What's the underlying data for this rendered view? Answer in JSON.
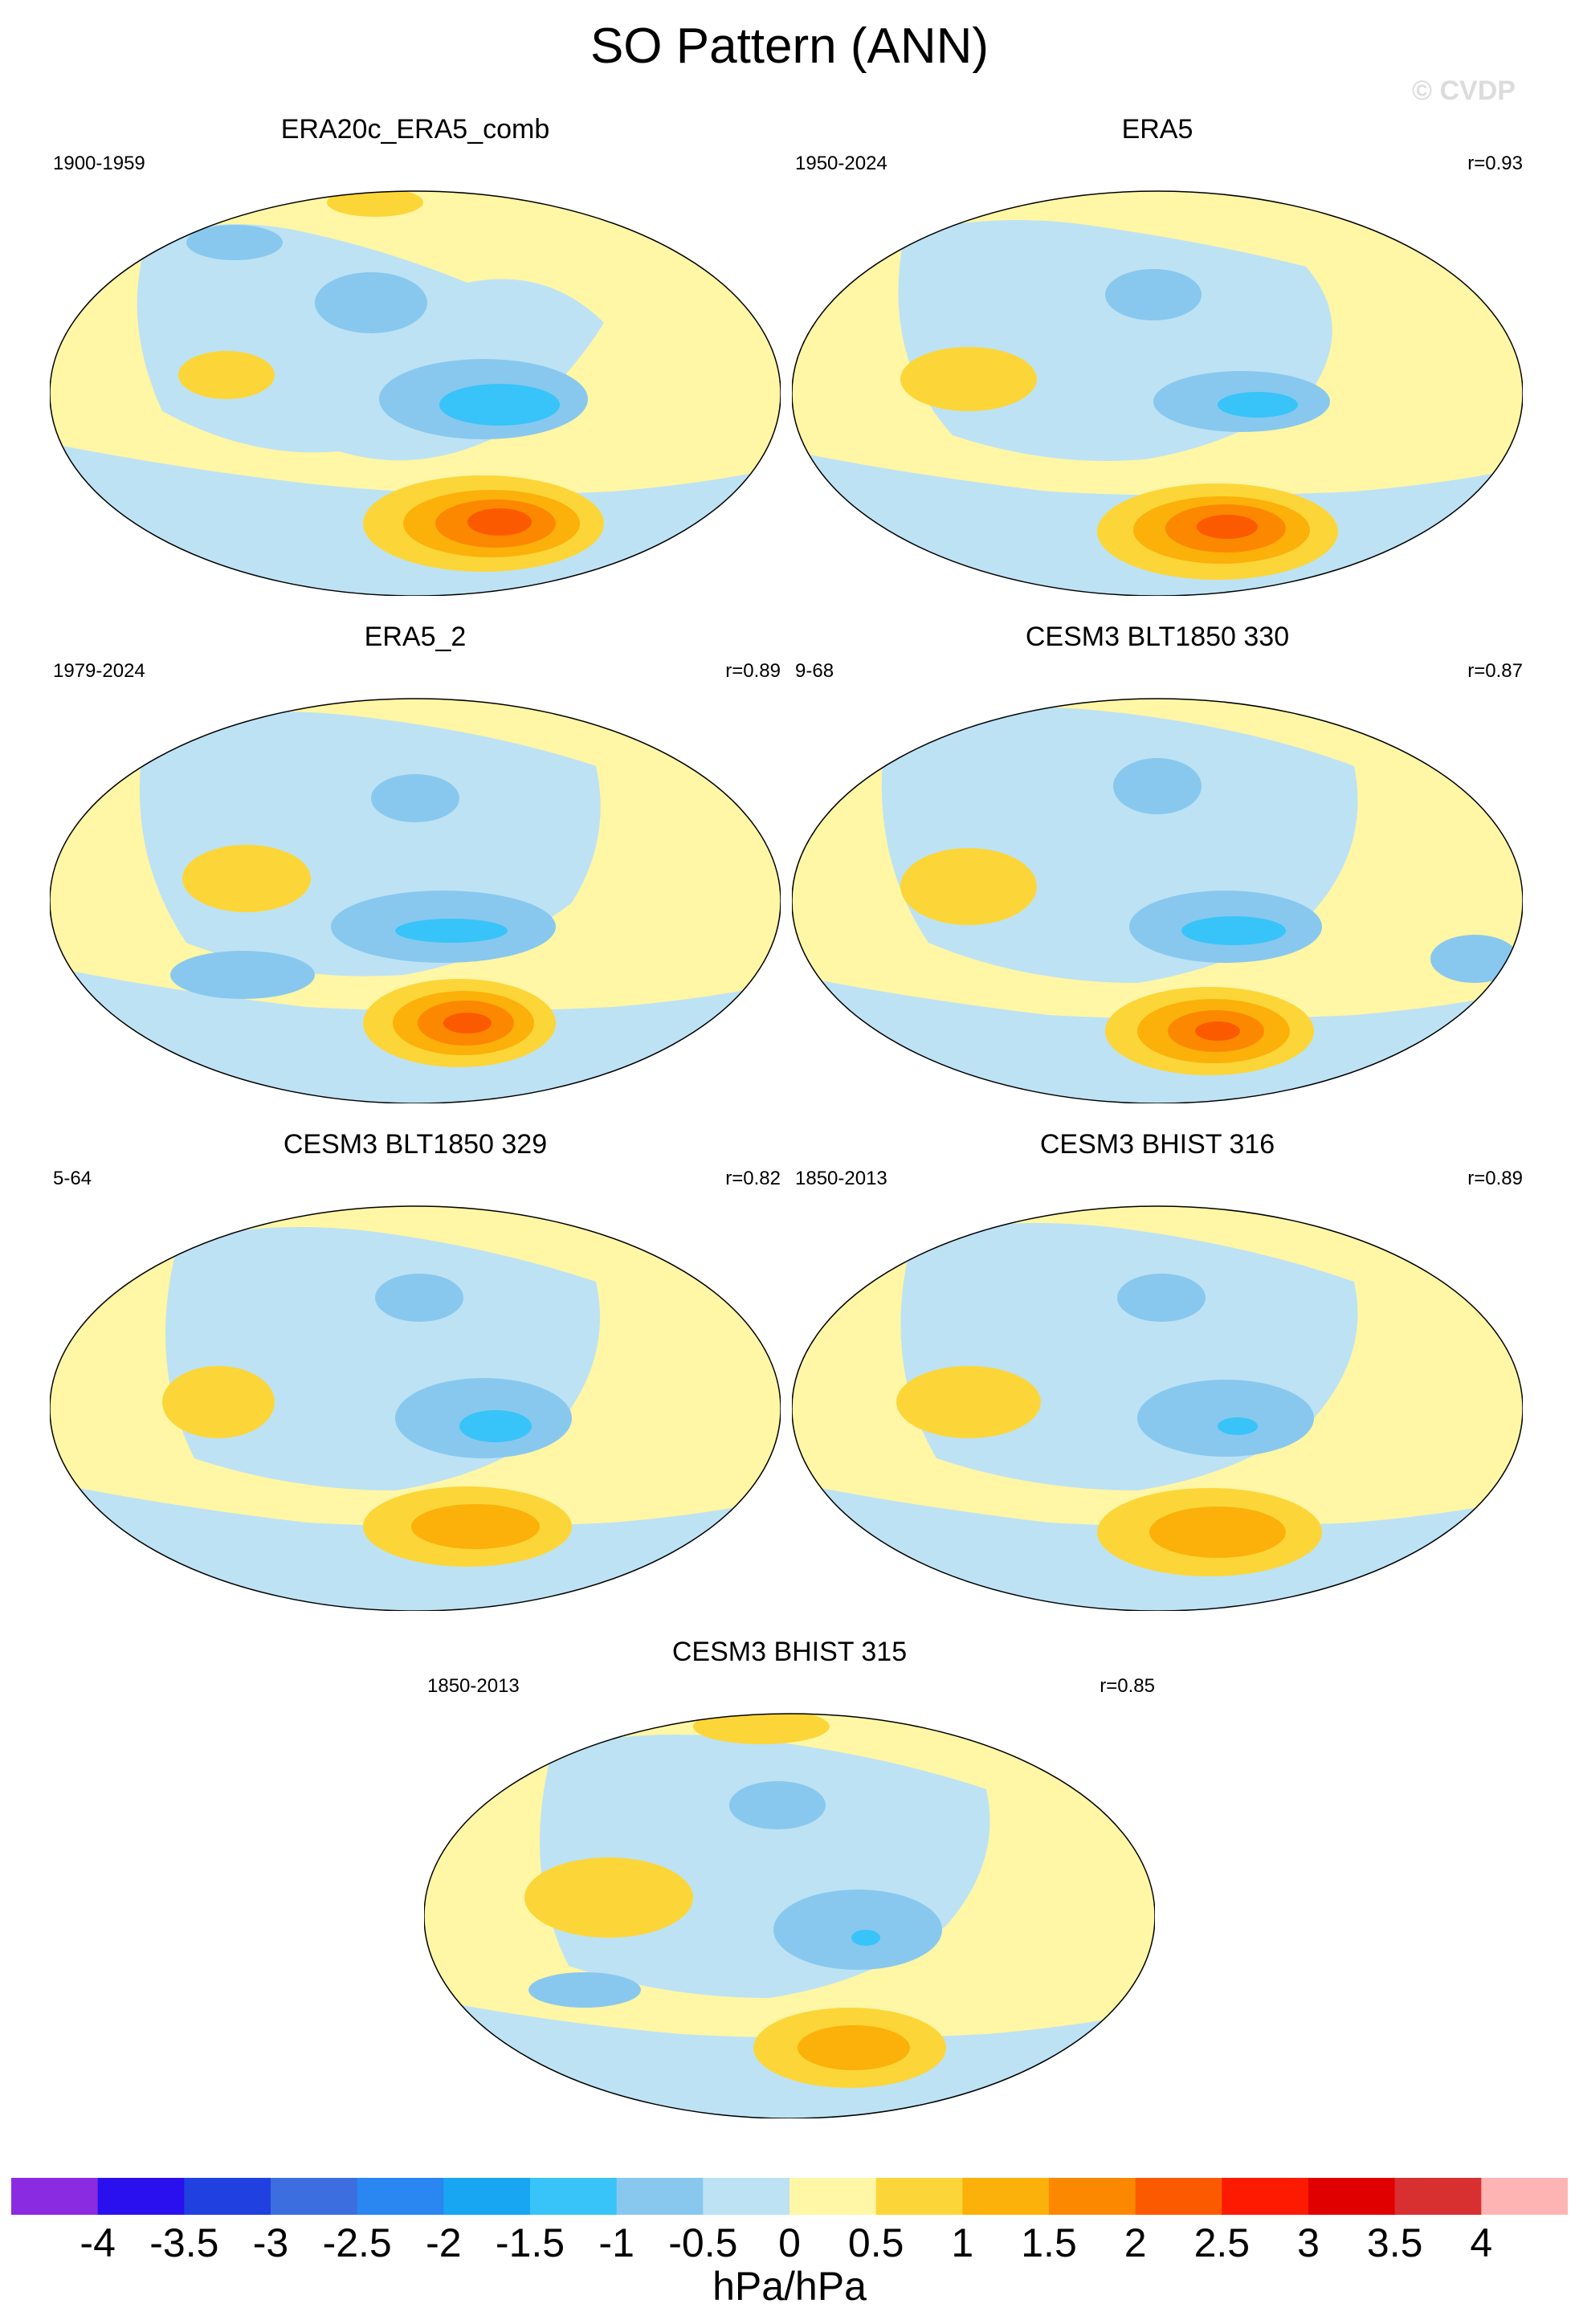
{
  "title": "SO Pattern (ANN)",
  "watermark": "© CVDP",
  "panels": [
    {
      "name": "ERA20c_ERA5_comb",
      "years": "1900-1959",
      "r": ""
    },
    {
      "name": "ERA5",
      "years": "1950-2024",
      "r": "r=0.93"
    },
    {
      "name": "ERA5_2",
      "years": "1979-2024",
      "r": "r=0.89"
    },
    {
      "name": "CESM3 BLT1850 330",
      "years": "9-68",
      "r": "r=0.87"
    },
    {
      "name": "CESM3 BLT1850 329",
      "years": "5-64",
      "r": "r=0.82"
    },
    {
      "name": "CESM3 BHIST 316",
      "years": "1850-2013",
      "r": "r=0.89"
    },
    {
      "name": "CESM3 BHIST 315",
      "years": "1850-2013",
      "r": "r=0.85"
    }
  ],
  "colorbar": {
    "units": "hPa/hPa",
    "labels": [
      "-4",
      "-3.5",
      "-3",
      "-2.5",
      "-2",
      "-1.5",
      "-1",
      "-0.5",
      "0",
      "0.5",
      "1",
      "1.5",
      "2",
      "2.5",
      "3",
      "3.5",
      "4"
    ],
    "colors": [
      "#8a2be2",
      "#2a10ee",
      "#2040e0",
      "#3d6ee0",
      "#2a86f0",
      "#18a6f2",
      "#38c4f8",
      "#88c8ee",
      "#bde2f4",
      "#fff6a6",
      "#fcd638",
      "#fcb00a",
      "#fc8800",
      "#fc5a00",
      "#fc1a00",
      "#e00000",
      "#d83030",
      "#ffb4b4"
    ]
  }
}
